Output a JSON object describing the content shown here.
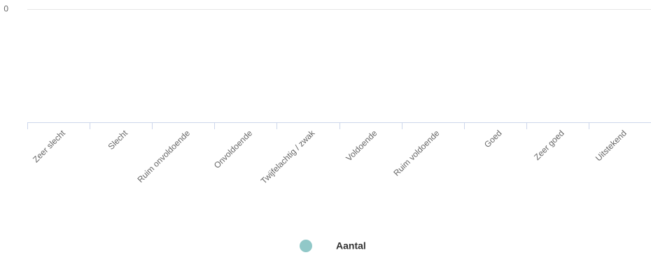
{
  "chart_data": {
    "type": "bar",
    "categories": [
      "Zeer slecht",
      "Slecht",
      "Ruim onvoldoende",
      "Onvoldoende",
      "Twijfelachtig / zwak",
      "Voldoende",
      "Ruim voldoende",
      "Goed",
      "Zeer goed",
      "Uitstekend"
    ],
    "series": [
      {
        "name": "Aantal",
        "color": "#91c8c8",
        "values": [
          null,
          null,
          null,
          null,
          null,
          null,
          null,
          null,
          null,
          null
        ]
      }
    ],
    "yticks": [
      0
    ],
    "grid": true
  }
}
